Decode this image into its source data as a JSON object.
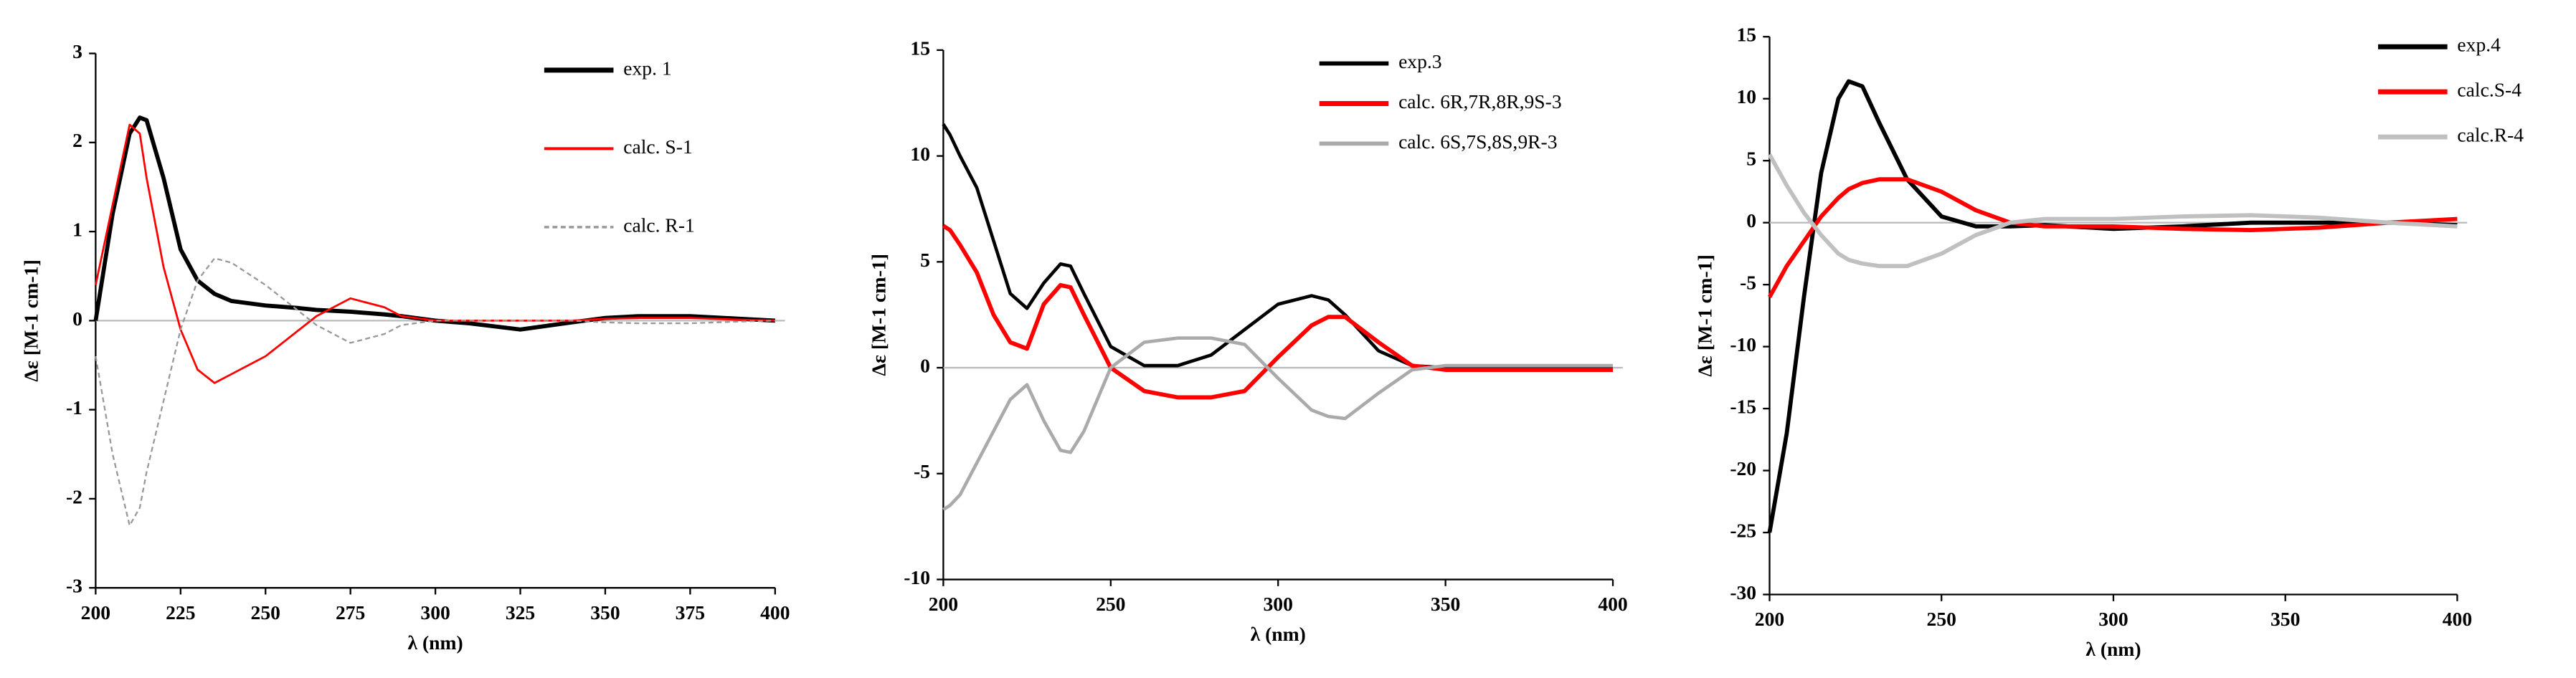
{
  "chart_data": [
    {
      "type": "line",
      "x_label": "λ (nm)",
      "y_label": "Δε [M-1 cm-1]",
      "x": [
        200,
        205,
        210,
        213,
        215,
        220,
        225,
        230,
        235,
        240,
        250,
        260,
        265,
        275,
        285,
        290,
        300,
        310,
        325,
        340,
        350,
        360,
        375,
        390,
        400
      ],
      "series": [
        {
          "name": "exp. 1",
          "color": "#000000",
          "values": [
            0,
            1.2,
            2.1,
            2.28,
            2.25,
            1.6,
            0.8,
            0.45,
            0.3,
            0.22,
            0.17,
            0.14,
            0.12,
            0.1,
            0.07,
            0.05,
            0,
            -0.03,
            -0.1,
            -0.02,
            0.03,
            0.05,
            0.05,
            0.02,
            0
          ]
        },
        {
          "name": "calc. S-1",
          "color": "#ff0000",
          "values": [
            0.4,
            1.3,
            2.2,
            2.1,
            1.6,
            0.6,
            -0.1,
            -0.55,
            -0.7,
            -0.6,
            -0.4,
            -0.1,
            0.05,
            0.25,
            0.15,
            0.05,
            0,
            0,
            0,
            0,
            0.02,
            0.03,
            0.03,
            0.01,
            0
          ]
        },
        {
          "name": "calc. R-1",
          "color": "#999999",
          "linestyle": "dashed",
          "values": [
            -0.4,
            -1.5,
            -2.3,
            -2.1,
            -1.7,
            -0.9,
            -0.1,
            0.45,
            0.7,
            0.65,
            0.4,
            0.1,
            -0.05,
            -0.25,
            -0.15,
            -0.05,
            0,
            0,
            0,
            0,
            -0.02,
            -0.03,
            -0.03,
            -0.01,
            0
          ]
        }
      ],
      "xlim": [
        200,
        400
      ],
      "xticks": [
        200,
        225,
        250,
        275,
        300,
        325,
        350,
        375,
        400
      ],
      "ylim": [
        -3,
        3
      ],
      "yticks": [
        -3,
        -2,
        -1,
        0,
        1,
        2,
        3
      ],
      "legend": "upper right"
    },
    {
      "type": "line",
      "x_label": "λ (nm)",
      "y_label": "Δε [M-1 cm-1]",
      "x": [
        200,
        202,
        205,
        210,
        215,
        220,
        225,
        230,
        235,
        238,
        242,
        250,
        260,
        270,
        280,
        290,
        300,
        310,
        315,
        320,
        330,
        340,
        350,
        375,
        400
      ],
      "series": [
        {
          "name": "exp.3",
          "color": "#000000",
          "values": [
            11.5,
            11,
            10,
            8.5,
            6,
            3.5,
            2.8,
            4,
            4.9,
            4.8,
            3.5,
            1,
            0.1,
            0.1,
            0.6,
            1.8,
            3,
            3.4,
            3.2,
            2.5,
            0.8,
            0.1,
            0,
            0,
            0
          ]
        },
        {
          "name": "calc. 6R,7R,8R,9S-3",
          "color": "#ff0000",
          "values": [
            6.7,
            6.5,
            5.8,
            4.5,
            2.5,
            1.2,
            0.9,
            3,
            3.9,
            3.8,
            2.5,
            0,
            -1.1,
            -1.4,
            -1.4,
            -1.1,
            0.5,
            2,
            2.4,
            2.4,
            1.2,
            0.1,
            -0.1,
            -0.1,
            -0.1
          ]
        },
        {
          "name": "calc. 6S,7S,8S,9R-3",
          "color": "#aaaaaa",
          "values": [
            -6.7,
            -6.5,
            -6,
            -4.5,
            -3,
            -1.5,
            -0.8,
            -2.5,
            -3.9,
            -4,
            -3,
            0,
            1.2,
            1.4,
            1.4,
            1.1,
            -0.5,
            -2,
            -2.3,
            -2.4,
            -1.2,
            -0.1,
            0.1,
            0.1,
            0.1
          ]
        }
      ],
      "xlim": [
        200,
        400
      ],
      "xticks": [
        200,
        250,
        300,
        350,
        400
      ],
      "ylim": [
        -10,
        15
      ],
      "yticks": [
        -10,
        -5,
        0,
        5,
        10,
        15
      ],
      "legend": "upper right"
    },
    {
      "type": "line",
      "x_label": "λ (nm)",
      "y_label": "Δε [M-1 cm-1]",
      "x": [
        200,
        205,
        210,
        215,
        220,
        223,
        227,
        232,
        240,
        250,
        260,
        270,
        280,
        300,
        320,
        340,
        360,
        380,
        400
      ],
      "series": [
        {
          "name": "exp.4",
          "color": "#000000",
          "values": [
            -25,
            -17,
            -6,
            4,
            10,
            11.4,
            11,
            8,
            3.5,
            0.5,
            -0.3,
            -0.3,
            -0.2,
            -0.5,
            -0.3,
            0,
            0,
            0,
            -0.2
          ]
        },
        {
          "name": "calc.S-4",
          "color": "#ff0000",
          "values": [
            -6,
            -3.5,
            -1.5,
            0.5,
            2,
            2.7,
            3.2,
            3.5,
            3.5,
            2.5,
            1,
            0,
            -0.3,
            -0.3,
            -0.5,
            -0.6,
            -0.4,
            0,
            0.3
          ]
        },
        {
          "name": "calc.R-4",
          "color": "#c0c0c0",
          "values": [
            5.5,
            3,
            0.8,
            -1,
            -2.5,
            -3,
            -3.3,
            -3.5,
            -3.5,
            -2.5,
            -1,
            0,
            0.3,
            0.3,
            0.5,
            0.6,
            0.4,
            0,
            -0.3
          ]
        }
      ],
      "xlim": [
        200,
        400
      ],
      "xticks": [
        200,
        250,
        300,
        350,
        400
      ],
      "ylim": [
        -30,
        15
      ],
      "yticks": [
        -30,
        -25,
        -20,
        -15,
        -10,
        -5,
        0,
        5,
        10,
        15
      ],
      "legend": "upper right"
    }
  ]
}
